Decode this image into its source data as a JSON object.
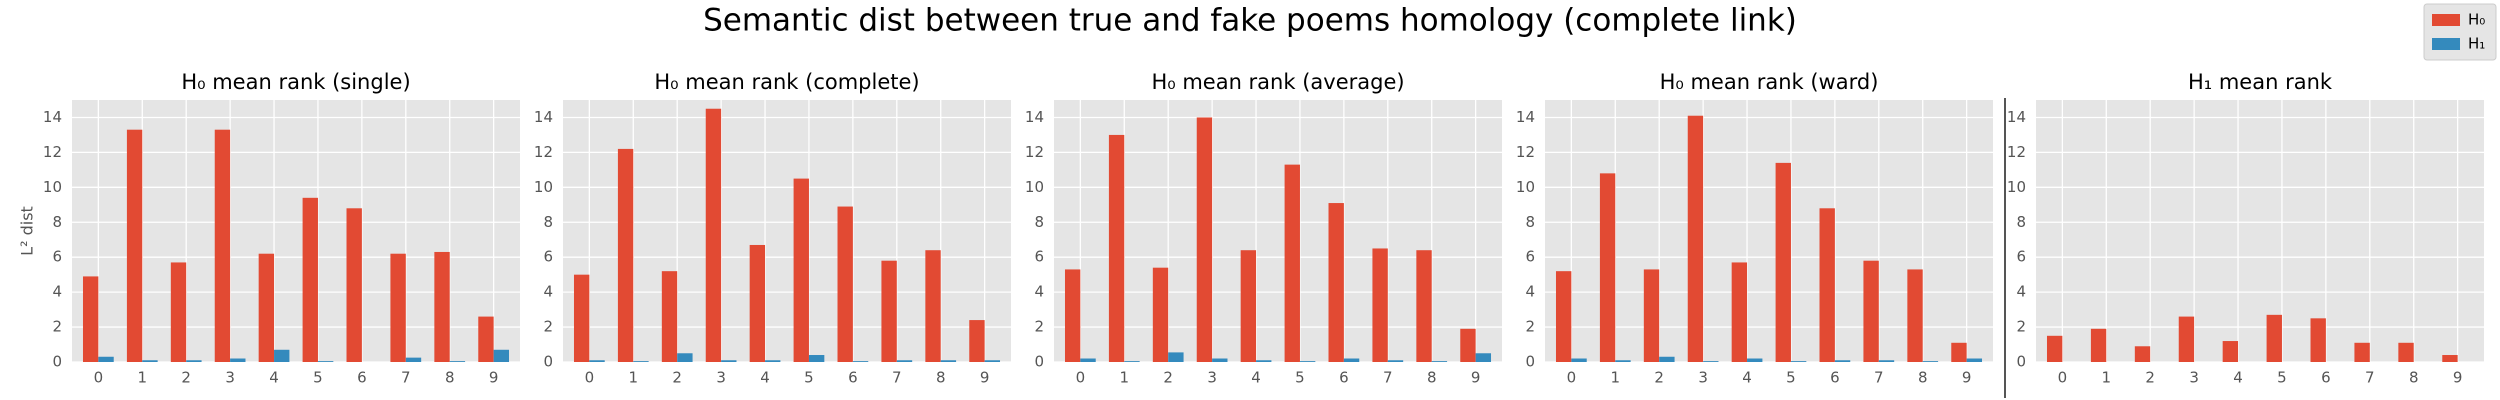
{
  "title": "Semantic dist between true and fake poems homology (complete link)",
  "chart_data": [
    {
      "type": "bar",
      "title": "H₀ mean rank (single)",
      "ylabel": "L² dist",
      "categories": [
        "0",
        "1",
        "2",
        "3",
        "4",
        "5",
        "6",
        "7",
        "8",
        "9"
      ],
      "series": [
        {
          "name": "H₀",
          "color": "#E24A33",
          "values": [
            4.9,
            13.3,
            5.7,
            13.3,
            6.2,
            9.4,
            8.8,
            6.2,
            6.3,
            2.6
          ]
        },
        {
          "name": "H₁",
          "color": "#348ABD",
          "values": [
            0.3,
            0.1,
            0.1,
            0.2,
            0.7,
            0.05,
            0,
            0.25,
            0.05,
            0.7
          ]
        }
      ],
      "ylim": [
        0,
        15
      ],
      "yticks": [
        0,
        2,
        4,
        6,
        8,
        10,
        12,
        14
      ],
      "grid": true
    },
    {
      "type": "bar",
      "title": "H₀ mean rank (complete)",
      "categories": [
        "0",
        "1",
        "2",
        "3",
        "4",
        "5",
        "6",
        "7",
        "8",
        "9"
      ],
      "series": [
        {
          "name": "H₀",
          "color": "#E24A33",
          "values": [
            5.0,
            12.2,
            5.2,
            14.5,
            6.7,
            10.5,
            8.9,
            5.8,
            6.4,
            2.4
          ]
        },
        {
          "name": "H₁",
          "color": "#348ABD",
          "values": [
            0.1,
            0.05,
            0.5,
            0.1,
            0.1,
            0.4,
            0.05,
            0.1,
            0.1,
            0.1
          ]
        }
      ],
      "ylim": [
        0,
        15
      ],
      "yticks": [
        0,
        2,
        4,
        6,
        8,
        10,
        12,
        14
      ],
      "grid": true
    },
    {
      "type": "bar",
      "title": "H₀ mean rank (average)",
      "categories": [
        "0",
        "1",
        "2",
        "3",
        "4",
        "5",
        "6",
        "7",
        "8",
        "9"
      ],
      "series": [
        {
          "name": "H₀",
          "color": "#E24A33",
          "values": [
            5.3,
            13.0,
            5.4,
            14.0,
            6.4,
            11.3,
            9.1,
            6.5,
            6.4,
            1.9
          ]
        },
        {
          "name": "H₁",
          "color": "#348ABD",
          "values": [
            0.2,
            0.05,
            0.55,
            0.2,
            0.1,
            0.05,
            0.2,
            0.1,
            0.05,
            0.5
          ]
        }
      ],
      "ylim": [
        0,
        15
      ],
      "yticks": [
        0,
        2,
        4,
        6,
        8,
        10,
        12,
        14
      ],
      "grid": true
    },
    {
      "type": "bar",
      "title": "H₀ mean rank (ward)",
      "categories": [
        "0",
        "1",
        "2",
        "3",
        "4",
        "5",
        "6",
        "7",
        "8",
        "9"
      ],
      "series": [
        {
          "name": "H₀",
          "color": "#E24A33",
          "values": [
            5.2,
            10.8,
            5.3,
            14.1,
            5.7,
            11.4,
            8.8,
            5.8,
            5.3,
            1.1
          ]
        },
        {
          "name": "H₁",
          "color": "#348ABD",
          "values": [
            0.2,
            0.1,
            0.3,
            0.05,
            0.2,
            0.05,
            0.1,
            0.1,
            0.05,
            0.2
          ]
        }
      ],
      "ylim": [
        0,
        15
      ],
      "yticks": [
        0,
        2,
        4,
        6,
        8,
        10,
        12,
        14
      ],
      "grid": true
    },
    {
      "type": "bar",
      "title": "H₁ mean rank",
      "categories": [
        "0",
        "1",
        "2",
        "3",
        "4",
        "5",
        "6",
        "7",
        "8",
        "9"
      ],
      "series": [
        {
          "name": "H₀",
          "color": "#E24A33",
          "values": [
            1.5,
            1.9,
            0.9,
            2.6,
            1.2,
            2.7,
            2.5,
            1.1,
            1.1,
            0.4
          ]
        },
        {
          "name": "H₁",
          "color": "#348ABD",
          "values": [
            0,
            0,
            0,
            0,
            0,
            0,
            0,
            0,
            0,
            0
          ]
        }
      ],
      "ylim": [
        0,
        15
      ],
      "yticks": [
        0,
        2,
        4,
        6,
        8,
        10,
        12,
        14
      ],
      "grid": true
    }
  ]
}
